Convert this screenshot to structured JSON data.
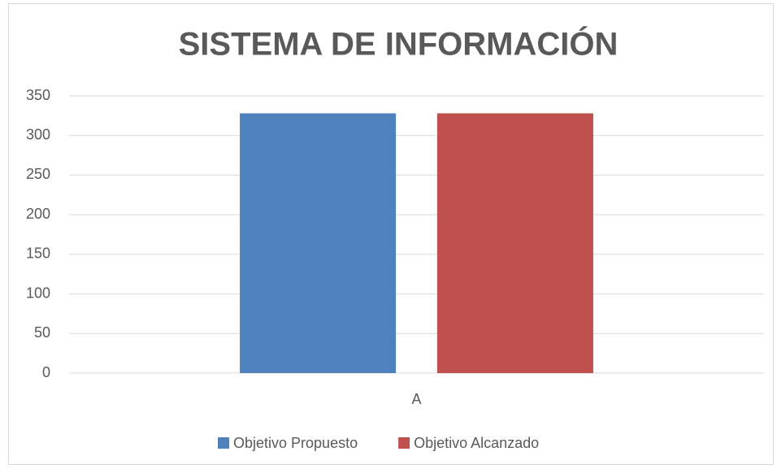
{
  "chart_data": {
    "type": "bar",
    "title": "SISTEMA DE INFORMACIÓN",
    "categories": [
      "A"
    ],
    "series": [
      {
        "name": "Objetivo Propuesto",
        "color": "#4f81bd",
        "values": [
          328
        ]
      },
      {
        "name": "Objetivo Alcanzado",
        "color": "#c0504d",
        "values": [
          328
        ]
      }
    ],
    "ylim": [
      0,
      350
    ],
    "yticks": [
      0,
      50,
      100,
      150,
      200,
      250,
      300,
      350
    ],
    "grid": true,
    "legend": "bottom"
  }
}
